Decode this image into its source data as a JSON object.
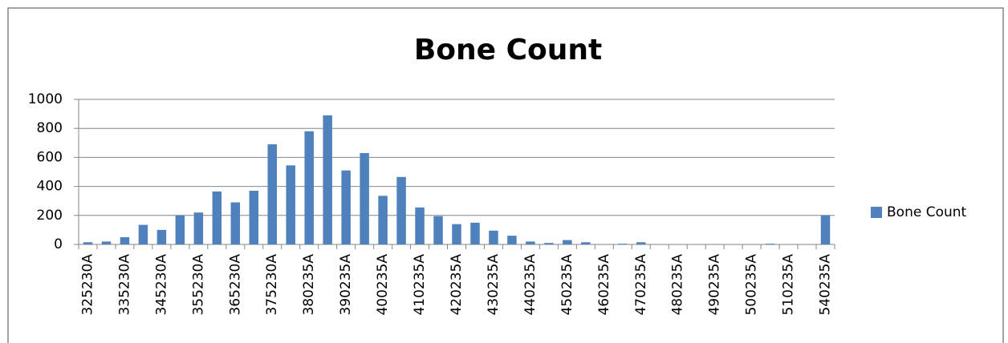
{
  "chart_data": {
    "type": "bar",
    "title": "Bone Count",
    "categories": [
      "325230A",
      null,
      "335230A",
      null,
      "345230A",
      null,
      "355230A",
      null,
      "365230A",
      null,
      "375230A",
      null,
      "380235A",
      null,
      "390235A",
      null,
      "400235A",
      null,
      "410235A",
      null,
      "420235A",
      null,
      "430235A",
      null,
      "440235A",
      null,
      "450235A",
      null,
      "460235A",
      null,
      "470235A",
      null,
      "480235A",
      null,
      "490235A",
      null,
      "500235A",
      null,
      "510235A",
      null,
      "540235A"
    ],
    "series": [
      {
        "name": "Bone Count",
        "color": "#4f81bd",
        "values": [
          15,
          20,
          50,
          135,
          100,
          200,
          220,
          365,
          290,
          370,
          690,
          545,
          780,
          890,
          510,
          630,
          335,
          465,
          255,
          195,
          140,
          150,
          95,
          60,
          20,
          10,
          30,
          15,
          0,
          5,
          15,
          0,
          0,
          0,
          0,
          0,
          0,
          5,
          0,
          0,
          200
        ]
      }
    ],
    "ylim": [
      0,
      1000
    ],
    "yticks": [
      0,
      200,
      400,
      600,
      800,
      1000
    ],
    "grid": true,
    "legend": "right"
  }
}
